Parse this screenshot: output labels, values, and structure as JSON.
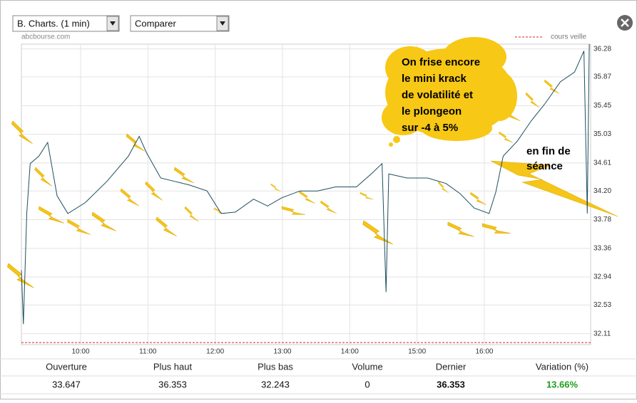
{
  "ui": {
    "period_select": "B. Charts. (1 min)",
    "compare_select": "Comparer",
    "source": "abcbourse.com",
    "prev_close_label": "cours veille"
  },
  "chart_data": {
    "type": "line",
    "x": [
      9.12,
      9.15,
      9.2,
      9.25,
      9.38,
      9.51,
      9.65,
      9.81,
      10.07,
      10.39,
      10.71,
      10.87,
      10.98,
      11.19,
      11.4,
      11.61,
      11.88,
      12.09,
      12.3,
      12.57,
      12.78,
      12.99,
      13.26,
      13.52,
      13.79,
      14.1,
      14.32,
      14.48,
      14.54,
      14.58,
      14.85,
      15.16,
      15.43,
      15.64,
      15.85,
      16.07,
      16.17,
      16.28,
      16.49,
      16.7,
      16.91,
      17.13,
      17.34,
      17.48,
      17.53,
      17.56
    ],
    "series": [
      {
        "color": "#1f4e5f",
        "values": [
          33.04,
          32.25,
          33.87,
          34.6,
          34.71,
          34.91,
          34.13,
          33.87,
          34.03,
          34.34,
          34.71,
          35.0,
          34.76,
          34.39,
          34.34,
          34.29,
          34.2,
          33.87,
          33.89,
          34.08,
          33.98,
          34.1,
          34.2,
          34.2,
          34.26,
          34.26,
          34.45,
          34.6,
          32.72,
          34.45,
          34.39,
          34.39,
          34.31,
          34.16,
          33.95,
          33.87,
          34.18,
          34.71,
          34.93,
          35.23,
          35.49,
          35.8,
          35.94,
          36.25,
          33.87,
          36.35
        ]
      }
    ],
    "prev_close": 31.98,
    "prev_close_color": "#d62728",
    "xlim": [
      9.12,
      17.58
    ],
    "xticks": [
      {
        "value": 10,
        "label": "10:00"
      },
      {
        "value": 11,
        "label": "11:00"
      },
      {
        "value": 12,
        "label": "12:00"
      },
      {
        "value": 13,
        "label": "13:00"
      },
      {
        "value": 14,
        "label": "14:00"
      },
      {
        "value": 15,
        "label": "15:00"
      },
      {
        "value": 16,
        "label": "16:00"
      }
    ],
    "ylim": [
      31.95,
      36.35
    ],
    "yticks": [
      32.11,
      32.53,
      32.94,
      33.36,
      33.78,
      {
        "value": 34.2,
        "label": "34.20"
      },
      34.61,
      35.03,
      35.45,
      35.87,
      36.28
    ],
    "grid": true,
    "cloud_note": [
      "On frise encore",
      "le mini krack",
      "de volatilité et",
      "le plongeon",
      "sur -4 à 5%"
    ],
    "end_note": [
      "en fin de",
      "séance"
    ]
  },
  "stats": {
    "labels": [
      "Ouverture",
      "Plus haut",
      "Plus bas",
      "Volume",
      "Dernier",
      "Variation (%)"
    ],
    "values": [
      33.647,
      36.353,
      32.243,
      0,
      36.353,
      "13.66%"
    ]
  }
}
